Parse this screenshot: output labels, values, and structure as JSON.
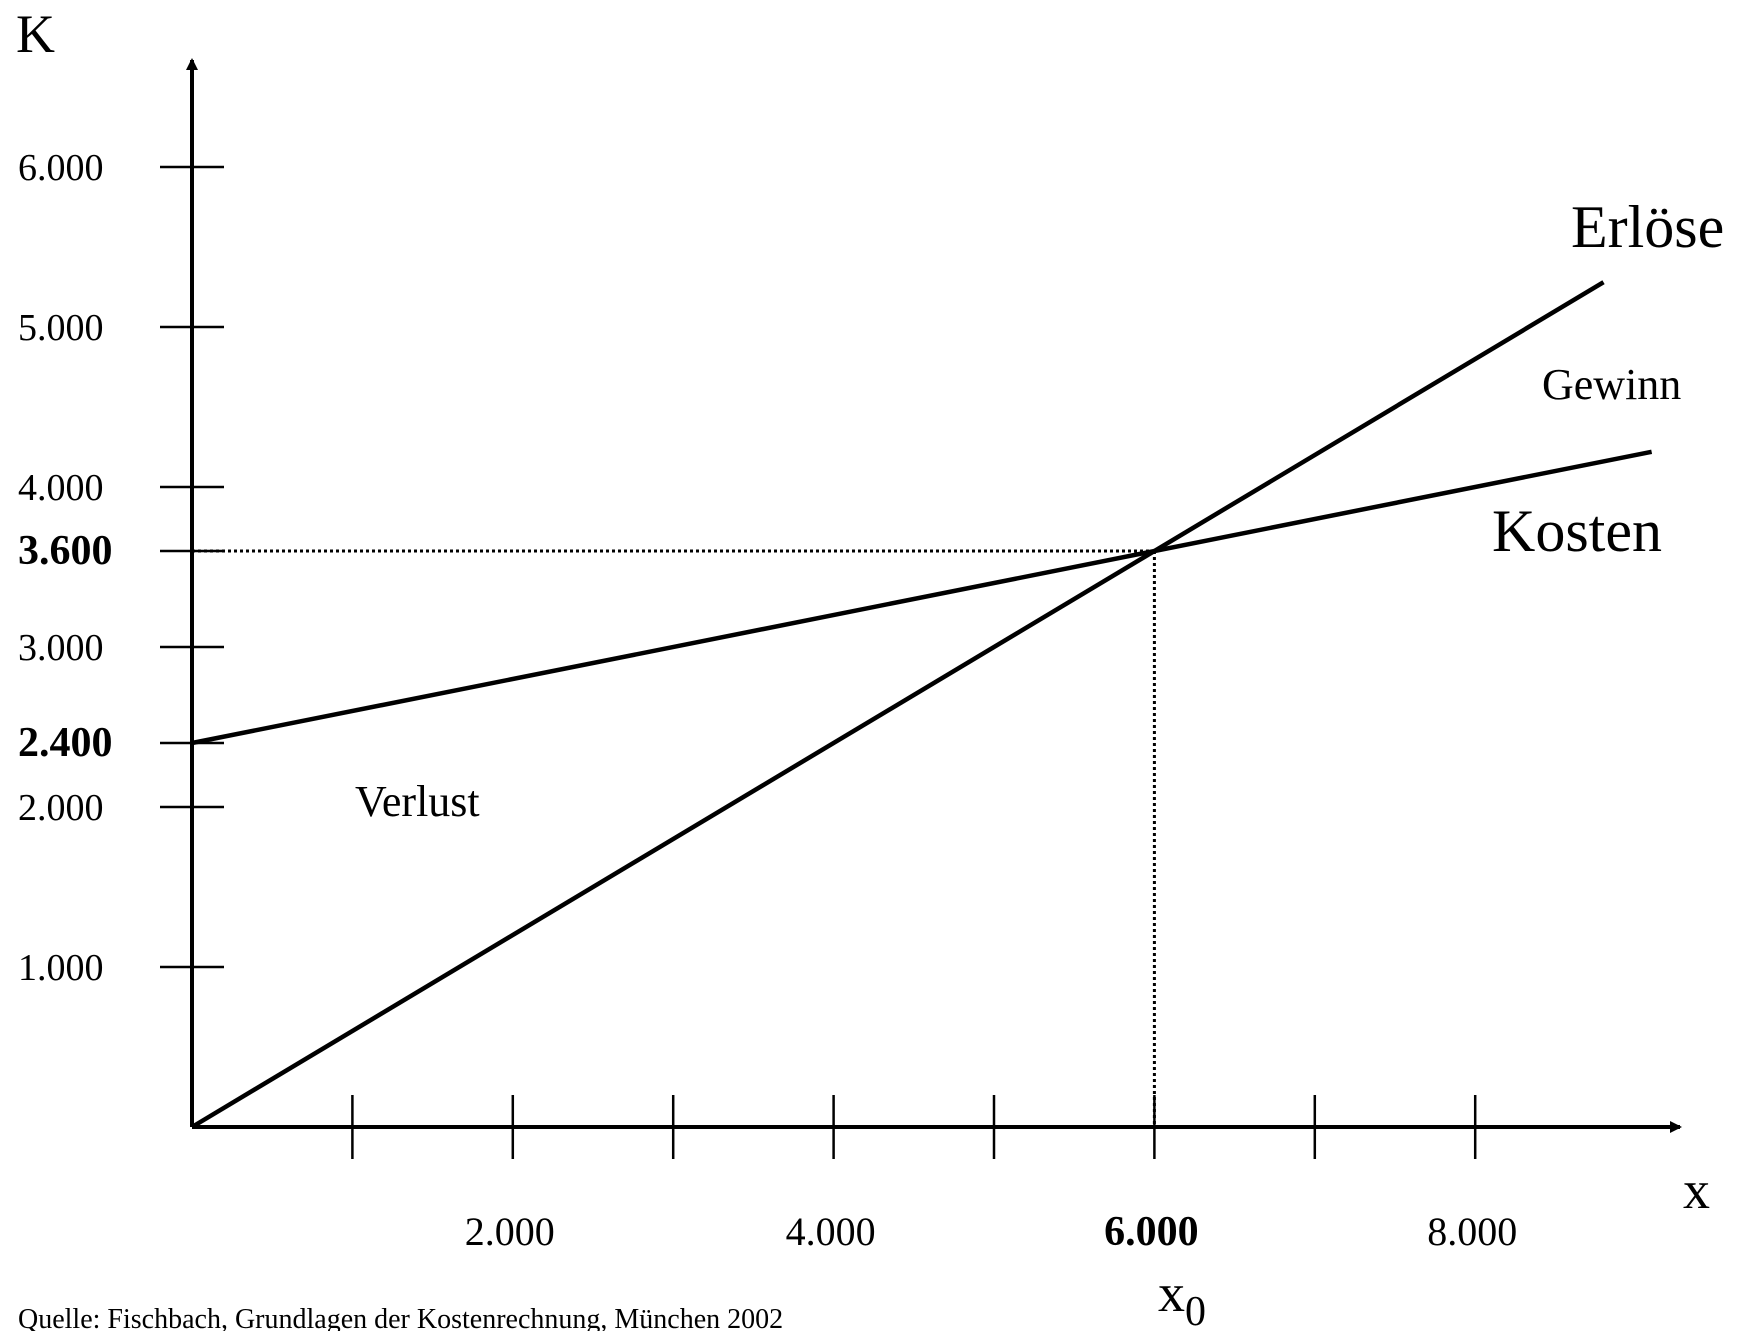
{
  "chart_data": {
    "type": "line",
    "title": "",
    "xlabel": "x",
    "ylabel": "K",
    "xlim": [
      0,
      9300
    ],
    "ylim": [
      0,
      6000
    ],
    "x_ticks": [
      1000,
      2000,
      3000,
      4000,
      5000,
      6000,
      7000,
      8000
    ],
    "x_tick_labels": [
      {
        "value": 2000,
        "label": "2.000",
        "bold": false
      },
      {
        "value": 4000,
        "label": "4.000",
        "bold": false
      },
      {
        "value": 6000,
        "label": "6.000",
        "bold": true
      },
      {
        "value": 8000,
        "label": "8.000",
        "bold": false
      }
    ],
    "y_ticks": [
      1000,
      2000,
      2400,
      3000,
      3600,
      4000,
      5000,
      6000
    ],
    "y_tick_labels": [
      {
        "value": 6000,
        "label": "6.000",
        "bold": false
      },
      {
        "value": 5000,
        "label": "5.000",
        "bold": false
      },
      {
        "value": 4000,
        "label": "4.000",
        "bold": false
      },
      {
        "value": 3600,
        "label": "3.600",
        "bold": true
      },
      {
        "value": 3000,
        "label": "3.000",
        "bold": false
      },
      {
        "value": 2400,
        "label": "2.400",
        "bold": true
      },
      {
        "value": 2000,
        "label": "2.000",
        "bold": false
      },
      {
        "value": 1000,
        "label": "1.000",
        "bold": false
      }
    ],
    "series": [
      {
        "name": "Erlöse",
        "x": [
          0,
          8800
        ],
        "y": [
          0,
          5280
        ]
      },
      {
        "name": "Kosten",
        "x": [
          0,
          9100
        ],
        "y": [
          2400,
          4220
        ]
      }
    ],
    "break_even": {
      "x": 6000,
      "y": 3600,
      "label": "x",
      "label_sub": "0"
    },
    "annotations": {
      "gewinn": "Gewinn",
      "verlust": "Verlust"
    },
    "source": "Quelle: Fischbach, Grundlagen der Kostenrechnung, München 2002"
  }
}
